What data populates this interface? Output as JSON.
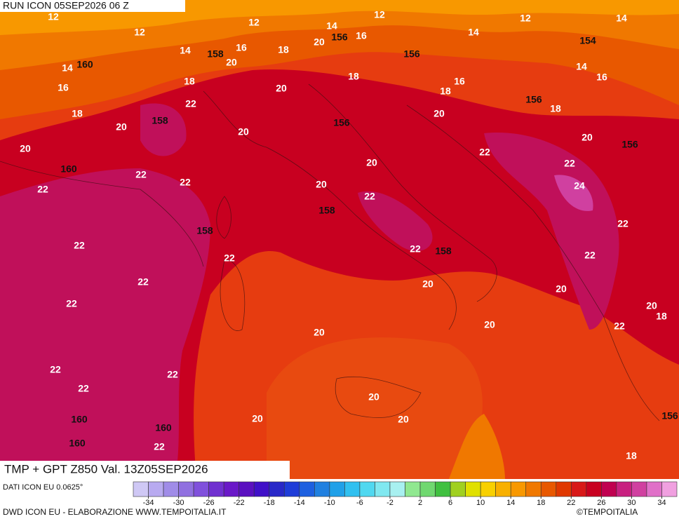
{
  "header": {
    "run": "RUN ICON 05SEP2026 06 Z"
  },
  "map": {
    "title": "TMP + GPT Z850 Val. 13Z05SEP2026",
    "temperature_labels": [
      12,
      12,
      12,
      12,
      12,
      14,
      14,
      16,
      14,
      14,
      16,
      18,
      20,
      20,
      14,
      16,
      18,
      18,
      16,
      18,
      14,
      16,
      18,
      20,
      22,
      18,
      20,
      20,
      20,
      20,
      20,
      22,
      20,
      22,
      22,
      22,
      22,
      24,
      20,
      22,
      22,
      22,
      22,
      22,
      22,
      22,
      20,
      20,
      22,
      20,
      18,
      22,
      20,
      20,
      22,
      22,
      22,
      20,
      20,
      20,
      22,
      18
    ],
    "geopotential_labels": [
      156,
      158,
      156,
      154,
      160,
      156,
      158,
      156,
      156,
      160,
      158,
      158,
      158,
      160,
      160,
      160,
      156
    ]
  },
  "colorbar": {
    "lim": [
      -36,
      36
    ],
    "ticks": [
      -34,
      -30,
      -26,
      -22,
      -18,
      -14,
      -10,
      -6,
      -2,
      2,
      6,
      10,
      14,
      18,
      22,
      26,
      30,
      34
    ],
    "colors": [
      "#cfc8f5",
      "#b8aaf0",
      "#a08ce8",
      "#9070e0",
      "#8050dc",
      "#7030d0",
      "#6a18c8",
      "#5a10c0",
      "#4010c8",
      "#2828c8",
      "#1e3cd8",
      "#1e60e0",
      "#2080e0",
      "#20a0e8",
      "#30c0f0",
      "#50d8f0",
      "#80e8f0",
      "#a8f0f0",
      "#90e890",
      "#70d870",
      "#40c040",
      "#a0d020",
      "#e0e000",
      "#f8d000",
      "#f8b000",
      "#f89800",
      "#f07800",
      "#e85800",
      "#e03800",
      "#d81818",
      "#c80020",
      "#c00050",
      "#c82080",
      "#d040a0",
      "#e070c8",
      "#f0a0e0"
    ]
  },
  "footer": {
    "data_source": "DATI ICON EU 0.0625°",
    "credit": "DWD ICON EU - ELABORAZIONE WWW.TEMPOITALIA.IT",
    "copyright": "©TEMPOITALIA"
  }
}
